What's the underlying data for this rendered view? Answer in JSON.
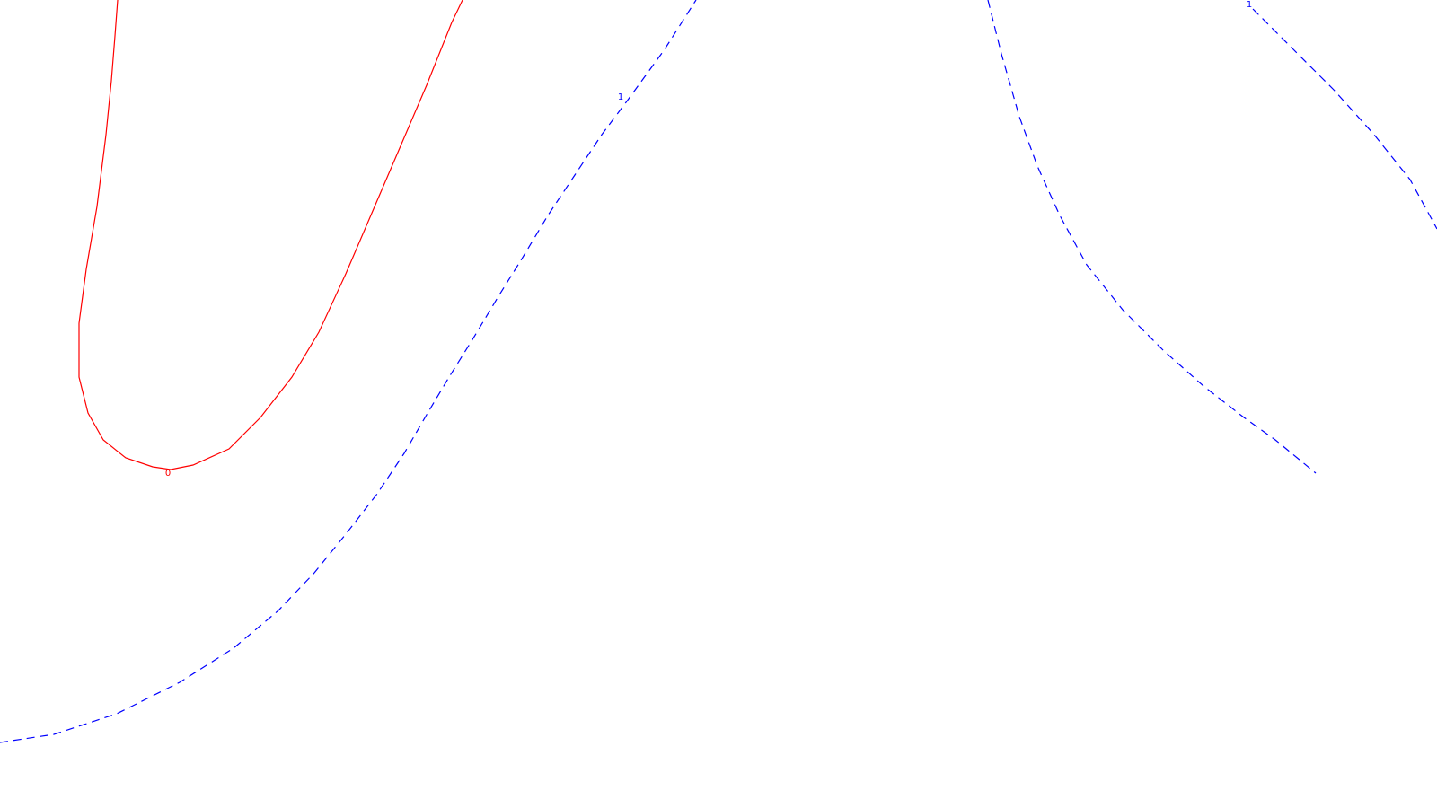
{
  "chart_data": {
    "type": "contour",
    "title": "",
    "xlabel": "",
    "ylabel": "",
    "grid": false,
    "colors": {
      "level_0": "#ff0000",
      "level_1": "#0000ff",
      "background": "#ffffff"
    },
    "levels": [
      {
        "value": 0,
        "label": "0",
        "line_style": "solid",
        "color": "#ff0000"
      },
      {
        "value": 1,
        "label": "1",
        "line_style": "dashed",
        "color": "#0000ff"
      }
    ]
  }
}
